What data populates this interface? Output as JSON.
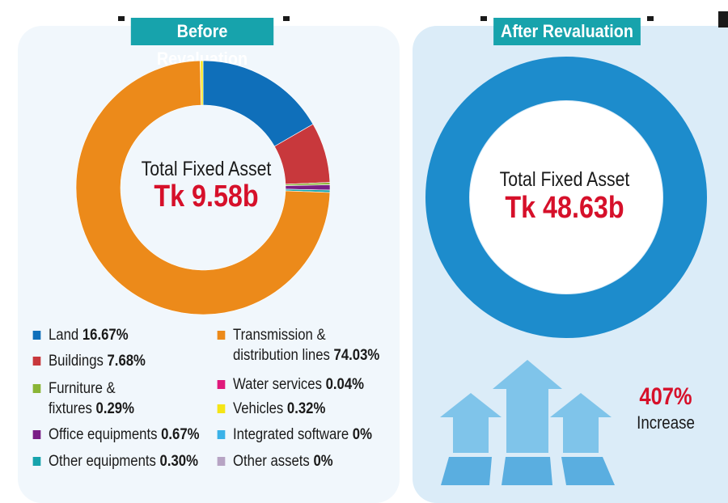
{
  "before": {
    "header": "Before Revaluation",
    "center_label": "Total Fixed Asset",
    "center_value": "Tk 9.58b"
  },
  "after": {
    "header": "After Revaluation",
    "center_label": "Total Fixed Asset",
    "center_value": "Tk 48.63b",
    "increase_pct": "407%",
    "increase_label": "Increase"
  },
  "colors": {
    "teal_header": "#17a3ac",
    "after_ring": "#1d8ccc",
    "arrow": "#7fc4ea",
    "red_text": "#d6102a"
  },
  "chart_data": [
    {
      "type": "pie",
      "donut": true,
      "labels": [
        "Land",
        "Buildings",
        "Furniture & fixtures",
        "Office equipments",
        "Other equipments",
        "Transmission & distribution lines",
        "Water services",
        "Vehicles",
        "Integrated software",
        "Other assets"
      ],
      "label_lines": [
        [
          "Land"
        ],
        [
          "Buildings"
        ],
        [
          "Furniture &",
          "fixtures"
        ],
        [
          "Office equipments"
        ],
        [
          "Other equipments"
        ],
        [
          "Transmission &",
          "distribution lines"
        ],
        [
          "Water services"
        ],
        [
          "Vehicles"
        ],
        [
          "Integrated software"
        ],
        [
          "Other assets"
        ]
      ],
      "value_labels": [
        "16.67%",
        "7.68%",
        "0.29%",
        "0.67%",
        "0.30%",
        "74.03%",
        "0.04%",
        "0.32%",
        "0%",
        "0%"
      ],
      "values": [
        16.67,
        7.68,
        0.29,
        0.67,
        0.3,
        74.03,
        0.04,
        0.32,
        0,
        0
      ],
      "colors": [
        "#0f6fba",
        "#c8383c",
        "#8ab536",
        "#7a1e86",
        "#17a3ac",
        "#ec8a1a",
        "#e0197b",
        "#f5e516",
        "#3bb2e8",
        "#b7a4c4"
      ],
      "legend": "bottom, two columns"
    },
    {
      "type": "pie",
      "donut": true,
      "labels": [
        "Total Fixed Asset"
      ],
      "values": [
        100
      ],
      "colors": [
        "#1d8ccc"
      ]
    }
  ]
}
